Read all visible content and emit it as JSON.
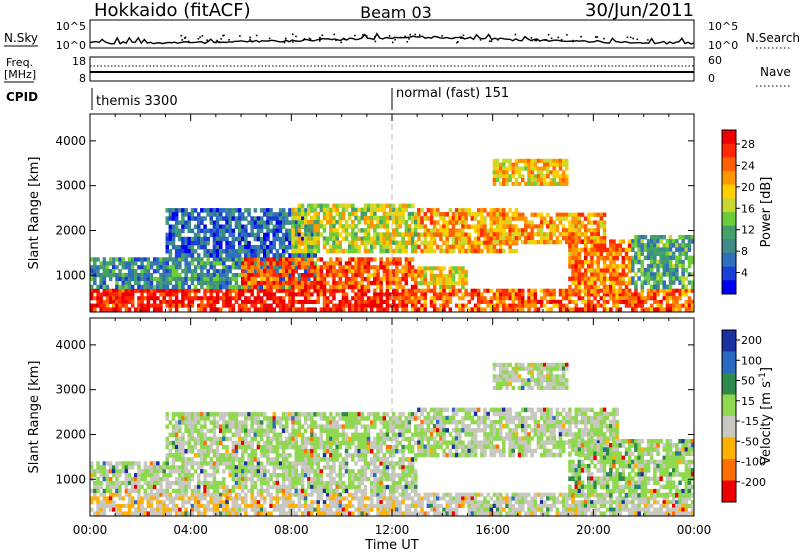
{
  "header": {
    "site": "Hokkaido (fitACF)",
    "beam": "Beam 03",
    "date": "30/Jun/2011"
  },
  "noise": {
    "left_label": "N.Sky",
    "right_label": "N.Search",
    "left_ticks": [
      "10^5",
      "10^0"
    ],
    "right_ticks": [
      "10^5",
      "10^0"
    ]
  },
  "freq": {
    "label_line1": "Freq.",
    "label_line2": "[MHz]",
    "left_ticks": [
      "18",
      "8"
    ],
    "right_ticks": [
      "60",
      "0"
    ],
    "right_label": "Nave"
  },
  "cpid": {
    "label": "CPID",
    "segments": [
      {
        "start_hour": 0,
        "text": "themis 3300"
      },
      {
        "start_hour": 12,
        "text": "normal (fast) 151"
      }
    ]
  },
  "time_axis": {
    "label": "Time UT",
    "ticks": [
      "00:00",
      "04:00",
      "08:00",
      "12:00",
      "16:00",
      "20:00",
      "00:00"
    ]
  },
  "chart_data": [
    {
      "type": "heatmap",
      "name": "power",
      "ylabel": "Slant Range [km]",
      "yticks": [
        1000,
        2000,
        3000,
        4000
      ],
      "ylim": [
        180,
        4600
      ],
      "xlim_hours": [
        0,
        24
      ],
      "colorbar": {
        "label": "Power [dB]",
        "ticks": [
          "28",
          "24",
          "20",
          "16",
          "12",
          "8",
          "4"
        ],
        "colors": [
          "#0000ee",
          "#1a3fd6",
          "#2f6fbd",
          "#3f8a8a",
          "#44a06a",
          "#6ccc3a",
          "#c8d830",
          "#ffd000",
          "#ff9800",
          "#ff6000",
          "#ff2800",
          "#ee0000"
        ]
      },
      "bands": [
        {
          "t0": 0,
          "t1": 12.5,
          "r0": 200,
          "r1": 700,
          "level": 0.92
        },
        {
          "t0": 12.5,
          "t1": 24,
          "r0": 200,
          "r1": 700,
          "level": 0.8
        },
        {
          "t0": 0,
          "t1": 9,
          "r0": 700,
          "r1": 1400,
          "level": 0.3
        },
        {
          "t0": 6,
          "t1": 13,
          "r0": 700,
          "r1": 1400,
          "level": 0.82
        },
        {
          "t0": 13,
          "t1": 15,
          "r0": 700,
          "r1": 1200,
          "level": 0.6
        },
        {
          "t0": 3,
          "t1": 9,
          "r0": 1400,
          "r1": 2500,
          "level": 0.2
        },
        {
          "t0": 8,
          "t1": 13,
          "r0": 1500,
          "r1": 2600,
          "level": 0.55
        },
        {
          "t0": 13,
          "t1": 17,
          "r0": 1500,
          "r1": 2500,
          "level": 0.7
        },
        {
          "t0": 16,
          "t1": 20.5,
          "r0": 1700,
          "r1": 2400,
          "level": 0.7
        },
        {
          "t0": 16,
          "t1": 19,
          "r0": 3000,
          "r1": 3600,
          "level": 0.65
        },
        {
          "t0": 19,
          "t1": 21.5,
          "r0": 600,
          "r1": 1800,
          "level": 0.75
        },
        {
          "t0": 21.5,
          "t1": 24,
          "r0": 700,
          "r1": 1900,
          "level": 0.35
        }
      ]
    },
    {
      "type": "heatmap",
      "name": "velocity",
      "ylabel": "Slant Range [km]",
      "yticks": [
        1000,
        2000,
        3000,
        4000
      ],
      "ylim": [
        180,
        4600
      ],
      "xlim_hours": [
        0,
        24
      ],
      "colorbar": {
        "label": "Velocity [m s^-1]",
        "ticks": [
          "200",
          "100",
          "50",
          "15",
          "-15",
          "-50",
          "-100",
          "-200"
        ],
        "colors": [
          "#1a2fa0",
          "#2a6ac0",
          "#2e8a4a",
          "#8fd850",
          "#c8c8c0",
          "#ffb000",
          "#ff7000",
          "#ee0000"
        ]
      },
      "bands": [
        {
          "t0": 0,
          "t1": 12.5,
          "r0": 200,
          "r1": 700,
          "level": 0.4
        },
        {
          "t0": 12.5,
          "t1": 24,
          "r0": 200,
          "r1": 700,
          "level": 0.45
        },
        {
          "t0": 0,
          "t1": 13,
          "r0": 700,
          "r1": 1400,
          "level": 0.5
        },
        {
          "t0": 3,
          "t1": 13,
          "r0": 1400,
          "r1": 2500,
          "level": 0.52
        },
        {
          "t0": 13,
          "t1": 21,
          "r0": 1500,
          "r1": 2600,
          "level": 0.5
        },
        {
          "t0": 16,
          "t1": 19,
          "r0": 3000,
          "r1": 3600,
          "level": 0.5
        },
        {
          "t0": 19,
          "t1": 24,
          "r0": 600,
          "r1": 1900,
          "level": 0.55
        }
      ]
    }
  ]
}
